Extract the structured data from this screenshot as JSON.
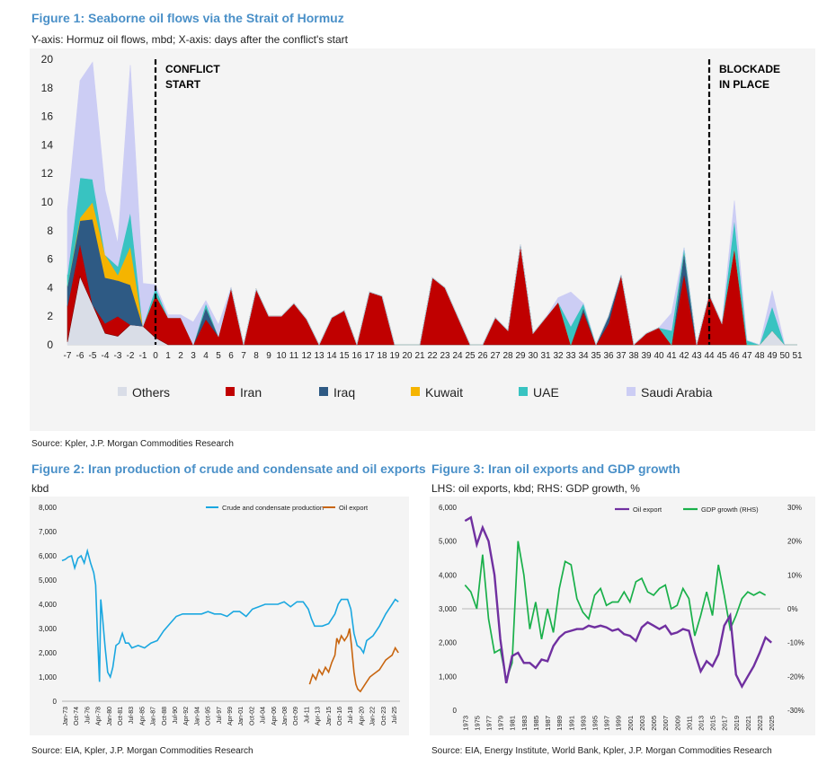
{
  "fig1": {
    "title": "Figure 1: Seaborne oil flows via the Strait of Hormuz",
    "subtitle": "Y-axis: Hormuz oil flows, mbd; X-axis: days after the conflict's start",
    "source": "Source: Kpler, J.P. Morgan Commodities Research",
    "annotations": [
      {
        "x": 0,
        "lines": [
          "CONFLICT",
          "START"
        ]
      },
      {
        "x": 44,
        "lines": [
          "BLOCKADE",
          "IN PLACE"
        ]
      }
    ]
  },
  "fig2": {
    "title": "Figure 2: Iran production of crude and condensate and oil exports",
    "subtitle": "kbd",
    "source": "Source: EIA, Kpler, J.P. Morgan Commodities Research"
  },
  "fig3": {
    "title": "Figure 3: Iran oil exports and GDP growth",
    "subtitle": "LHS: oil exports, kbd; RHS: GDP growth, %",
    "source": "Source: EIA, Energy Institute, World Bank, Kpler, J.P. Morgan Commodities Research"
  },
  "colors": {
    "Others": "#d9dde7",
    "Iran": "#c00000",
    "Iraq": "#2e5a84",
    "Kuwait": "#f5b400",
    "UAE": "#38c3c1",
    "Saudi Arabia": "#cccdf4",
    "crude": "#1aa7e0",
    "export": "#c8650f",
    "gdp": "#19b04a",
    "oilexp": "#7030a0",
    "title": "#4a90c8"
  },
  "chart_data": [
    {
      "id": "fig1",
      "type": "area",
      "stacked": true,
      "x": [
        -7,
        -6,
        -5,
        -4,
        -3,
        -2,
        -1,
        0,
        1,
        2,
        3,
        4,
        5,
        6,
        7,
        8,
        9,
        10,
        11,
        12,
        13,
        14,
        15,
        16,
        17,
        18,
        19,
        20,
        21,
        22,
        23,
        24,
        25,
        26,
        27,
        28,
        29,
        30,
        31,
        32,
        33,
        34,
        35,
        36,
        37,
        38,
        39,
        40,
        41,
        42,
        43,
        44,
        45,
        46,
        47,
        48,
        49,
        50,
        51
      ],
      "xlim": [
        -7,
        51
      ],
      "ylim": [
        0,
        20
      ],
      "yticks": [
        0,
        2,
        4,
        6,
        8,
        10,
        12,
        14,
        16,
        18,
        20
      ],
      "xlabel": "days after the conflict's start",
      "ylabel": "Hormuz oil flows, mbd",
      "series": [
        {
          "name": "Others",
          "values": [
            0.2,
            4.8,
            2.8,
            0.8,
            0.6,
            1.4,
            1.3,
            0.5,
            0,
            0,
            0,
            0,
            0,
            0,
            0,
            0,
            0,
            0,
            0,
            0,
            0,
            0,
            0,
            0,
            0,
            0,
            0,
            0,
            0,
            0,
            0,
            0,
            0,
            0,
            0,
            0,
            0,
            0,
            0,
            0,
            0,
            0,
            0,
            0,
            0,
            0,
            0,
            0,
            0,
            0,
            0,
            0,
            0,
            0,
            0,
            0,
            1.0,
            0,
            0
          ]
        },
        {
          "name": "Iran",
          "values": [
            2.5,
            2.3,
            0,
            0.7,
            1.4,
            0,
            0,
            3.0,
            1.9,
            1.9,
            0,
            1.8,
            0.6,
            4.0,
            0,
            3.9,
            2.0,
            2.0,
            2.9,
            1.8,
            0,
            1.9,
            2.4,
            0,
            3.7,
            3.4,
            0,
            0,
            0,
            4.7,
            4.0,
            2.0,
            0,
            0,
            1.9,
            1.0,
            7.0,
            0.8,
            1.9,
            3.0,
            0,
            2.3,
            0,
            1.5,
            4.9,
            0,
            0.8,
            1.2,
            0,
            5.0,
            0,
            3.5,
            1.5,
            6.8,
            0,
            0,
            0,
            0,
            0
          ]
        },
        {
          "name": "Iraq",
          "values": [
            1.4,
            1.6,
            6.0,
            3.2,
            2.5,
            2.8,
            0,
            0,
            0,
            0,
            0,
            0.8,
            0,
            0,
            0,
            0,
            0,
            0,
            0,
            0,
            0,
            0,
            0,
            0,
            0,
            0,
            0,
            0,
            0,
            0,
            0,
            0,
            0,
            0,
            0,
            0,
            0,
            0,
            0,
            0,
            0,
            0.3,
            0,
            0.5,
            0,
            0,
            0,
            0,
            0,
            1.5,
            0,
            0,
            0,
            0,
            0,
            0,
            0,
            0,
            0
          ]
        },
        {
          "name": "Kuwait",
          "values": [
            0,
            0.2,
            1.2,
            1.6,
            0.4,
            2.7,
            0,
            0,
            0,
            0,
            0,
            0,
            0,
            0,
            0,
            0,
            0,
            0,
            0,
            0,
            0,
            0,
            0,
            0,
            0,
            0,
            0,
            0,
            0,
            0,
            0,
            0,
            0,
            0,
            0,
            0,
            0,
            0,
            0,
            0,
            0,
            0,
            0,
            0,
            0,
            0,
            0,
            0,
            0,
            0,
            0,
            0,
            0,
            0,
            0,
            0,
            0,
            0,
            0
          ]
        },
        {
          "name": "UAE",
          "values": [
            0.8,
            2.8,
            1.6,
            0,
            0.6,
            2.4,
            0,
            0.5,
            0,
            0,
            0,
            0.3,
            0,
            0,
            0,
            0,
            0,
            0,
            0,
            0,
            0,
            0,
            0,
            0,
            0,
            0,
            0,
            0,
            0,
            0,
            0,
            0,
            0,
            0,
            0,
            0,
            0,
            0,
            0,
            0,
            1.3,
            0.3,
            0,
            0,
            0,
            0,
            0,
            0,
            1.0,
            0.3,
            0,
            0,
            0,
            2.0,
            0.3,
            0,
            1.7,
            0,
            0
          ]
        },
        {
          "name": "Saudi Arabia",
          "values": [
            4.5,
            6.8,
            8.2,
            4.5,
            1.6,
            10.3,
            3.0,
            0.2,
            0.2,
            0.2,
            1.6,
            0.2,
            0.8,
            0,
            0,
            0,
            0,
            0,
            0,
            0,
            0,
            0,
            0,
            0,
            0,
            0,
            0,
            0,
            0,
            0,
            0,
            0,
            0,
            0,
            0,
            0,
            0,
            0,
            0,
            0.3,
            2.4,
            0,
            0,
            0,
            0,
            0,
            0,
            0,
            1.2,
            0,
            0,
            0,
            0,
            1.3,
            0,
            0,
            1.1,
            0,
            0
          ]
        }
      ],
      "legend": [
        "Others",
        "Iran",
        "Iraq",
        "Kuwait",
        "UAE",
        "Saudi Arabia"
      ],
      "vlines": [
        0,
        44
      ]
    },
    {
      "id": "fig2",
      "type": "line",
      "ylim": [
        0,
        8000
      ],
      "yticks": [
        "0",
        "1,000",
        "2,000",
        "3,000",
        "4,000",
        "5,000",
        "6,000",
        "7,000",
        "8,000"
      ],
      "xticks": [
        "Jan-73",
        "Oct-74",
        "Jul-76",
        "Apr-78",
        "Jan-80",
        "Oct-81",
        "Jul-83",
        "Apr-85",
        "Jan-87",
        "Oct-88",
        "Jul-90",
        "Apr-92",
        "Jan-94",
        "Oct-95",
        "Jul-97",
        "Apr-99",
        "Jan-01",
        "Oct-02",
        "Jul-04",
        "Apr-06",
        "Jan-08",
        "Oct-09",
        "Jul-11",
        "Apr-13",
        "Jan-15",
        "Oct-16",
        "Jul-18",
        "Apr-20",
        "Jan-22",
        "Oct-23",
        "Jul-25"
      ],
      "xlim": [
        1973.0,
        2026.25
      ],
      "series": [
        {
          "name": "Crude and condensate production",
          "x": [
            1973,
            1973.5,
            1974,
            1974.5,
            1975,
            1975.5,
            1976,
            1976.5,
            1977,
            1977.5,
            1978,
            1978.3,
            1978.6,
            1978.9,
            1979.1,
            1979.4,
            1979.8,
            1980.2,
            1980.6,
            1981,
            1981.5,
            1982,
            1982.5,
            1983,
            1983.5,
            1984,
            1985,
            1986,
            1987,
            1988,
            1989,
            1990,
            1991,
            1992,
            1993,
            1994,
            1995,
            1996,
            1997,
            1998,
            1999,
            2000,
            2001,
            2002,
            2003,
            2004,
            2005,
            2006,
            2007,
            2008,
            2009,
            2010,
            2011,
            2011.8,
            2012.3,
            2012.8,
            2013,
            2014,
            2015,
            2016,
            2016.5,
            2017,
            2018,
            2018.5,
            2019,
            2019.5,
            2020,
            2020.5,
            2021,
            2022,
            2023,
            2024,
            2024.5,
            2025,
            2025.5,
            2026
          ],
          "values": [
            5800,
            5850,
            5950,
            6000,
            5500,
            5900,
            6000,
            5700,
            6200,
            5700,
            5300,
            4800,
            2700,
            800,
            4200,
            3400,
            2200,
            1200,
            1000,
            1400,
            2300,
            2400,
            2800,
            2400,
            2400,
            2200,
            2300,
            2200,
            2400,
            2500,
            2900,
            3200,
            3500,
            3600,
            3600,
            3600,
            3600,
            3700,
            3600,
            3600,
            3500,
            3700,
            3700,
            3500,
            3800,
            3900,
            4000,
            4000,
            4000,
            4100,
            3900,
            4100,
            4100,
            3800,
            3400,
            3100,
            3100,
            3100,
            3200,
            3600,
            4000,
            4200,
            4200,
            3800,
            2800,
            2300,
            2200,
            2000,
            2500,
            2700,
            3100,
            3600,
            3800,
            4000,
            4200,
            4100
          ]
        },
        {
          "name": "Oil export",
          "x": [
            2012,
            2012.5,
            2013,
            2013.5,
            2014,
            2014.5,
            2015,
            2015.5,
            2016,
            2016.3,
            2016.6,
            2017,
            2017.5,
            2018,
            2018.3,
            2018.6,
            2019,
            2019.3,
            2019.6,
            2020,
            2020.5,
            2021,
            2021.5,
            2022,
            2022.5,
            2023,
            2023.5,
            2024,
            2024.5,
            2025,
            2025.5,
            2026
          ],
          "values": [
            700,
            1100,
            900,
            1300,
            1100,
            1400,
            1200,
            1600,
            1900,
            2600,
            2400,
            2700,
            2500,
            2700,
            3000,
            2300,
            1200,
            700,
            500,
            400,
            600,
            800,
            1000,
            1100,
            1200,
            1300,
            1500,
            1700,
            1800,
            1900,
            2200,
            2000
          ]
        }
      ],
      "legend": [
        "Crude and condensate production",
        "Oil export"
      ]
    },
    {
      "id": "fig3",
      "type": "line",
      "ylim": [
        0,
        6000
      ],
      "yticks": [
        "0",
        "1,000",
        "2,000",
        "3,000",
        "4,000",
        "5,000",
        "6,000"
      ],
      "y2lim": [
        -30,
        30
      ],
      "y2ticks": [
        "-30%",
        "-20%",
        "-10%",
        "0%",
        "10%",
        "20%",
        "30%"
      ],
      "xticks": [
        "1973",
        "1975",
        "1977",
        "1979",
        "1981",
        "1983",
        "1985",
        "1987",
        "1989",
        "1991",
        "1993",
        "1995",
        "1997",
        "1999",
        "2001",
        "2003",
        "2005",
        "2007",
        "2009",
        "2011",
        "2013",
        "2015",
        "2017",
        "2019",
        "2021",
        "2023",
        "2025"
      ],
      "xlim": [
        1972.5,
        2026.5
      ],
      "series": [
        {
          "name": "Oil export",
          "axis": "left",
          "x": [
            1973,
            1974,
            1975,
            1976,
            1977,
            1978,
            1979,
            1980,
            1981,
            1982,
            1983,
            1984,
            1985,
            1986,
            1987,
            1988,
            1989,
            1990,
            1991,
            1992,
            1993,
            1994,
            1995,
            1996,
            1997,
            1998,
            1999,
            2000,
            2001,
            2002,
            2003,
            2004,
            2005,
            2006,
            2007,
            2008,
            2009,
            2010,
            2011,
            2012,
            2013,
            2014,
            2015,
            2016,
            2017,
            2018,
            2019,
            2020,
            2021,
            2022,
            2023,
            2024,
            2025
          ],
          "values": [
            5600,
            5700,
            4900,
            5400,
            5000,
            4000,
            2100,
            800,
            1600,
            1700,
            1400,
            1400,
            1250,
            1500,
            1450,
            1900,
            2150,
            2300,
            2350,
            2400,
            2400,
            2500,
            2450,
            2500,
            2450,
            2350,
            2400,
            2250,
            2200,
            2050,
            2450,
            2600,
            2500,
            2400,
            2500,
            2250,
            2300,
            2400,
            2350,
            1700,
            1150,
            1450,
            1300,
            1650,
            2500,
            2800,
            1050,
            700,
            1000,
            1300,
            1700,
            2150,
            2000
          ]
        },
        {
          "name": "GDP growth (RHS)",
          "axis": "right",
          "x": [
            1973,
            1974,
            1975,
            1976,
            1977,
            1978,
            1979,
            1980,
            1981,
            1982,
            1983,
            1984,
            1985,
            1986,
            1987,
            1988,
            1989,
            1990,
            1991,
            1992,
            1993,
            1994,
            1995,
            1996,
            1997,
            1998,
            1999,
            2000,
            2001,
            2002,
            2003,
            2004,
            2005,
            2006,
            2007,
            2008,
            2009,
            2010,
            2011,
            2012,
            2013,
            2014,
            2015,
            2016,
            2017,
            2018,
            2019,
            2020,
            2021,
            2022,
            2023,
            2024
          ],
          "values": [
            7,
            5,
            0,
            16,
            -3,
            -13,
            -12,
            -21,
            -16,
            20,
            10,
            -6,
            2,
            -9,
            0,
            -7,
            6,
            14,
            13,
            3,
            -1,
            -3,
            4,
            6,
            1,
            2,
            2,
            5,
            2,
            8,
            9,
            5,
            4,
            6,
            7,
            0,
            1,
            6,
            3,
            -8,
            -2,
            5,
            -2,
            13,
            4,
            -6,
            -2,
            3,
            5,
            4,
            5,
            4
          ]
        }
      ],
      "legend": [
        "Oil export",
        "GDP growth (RHS)"
      ]
    }
  ]
}
